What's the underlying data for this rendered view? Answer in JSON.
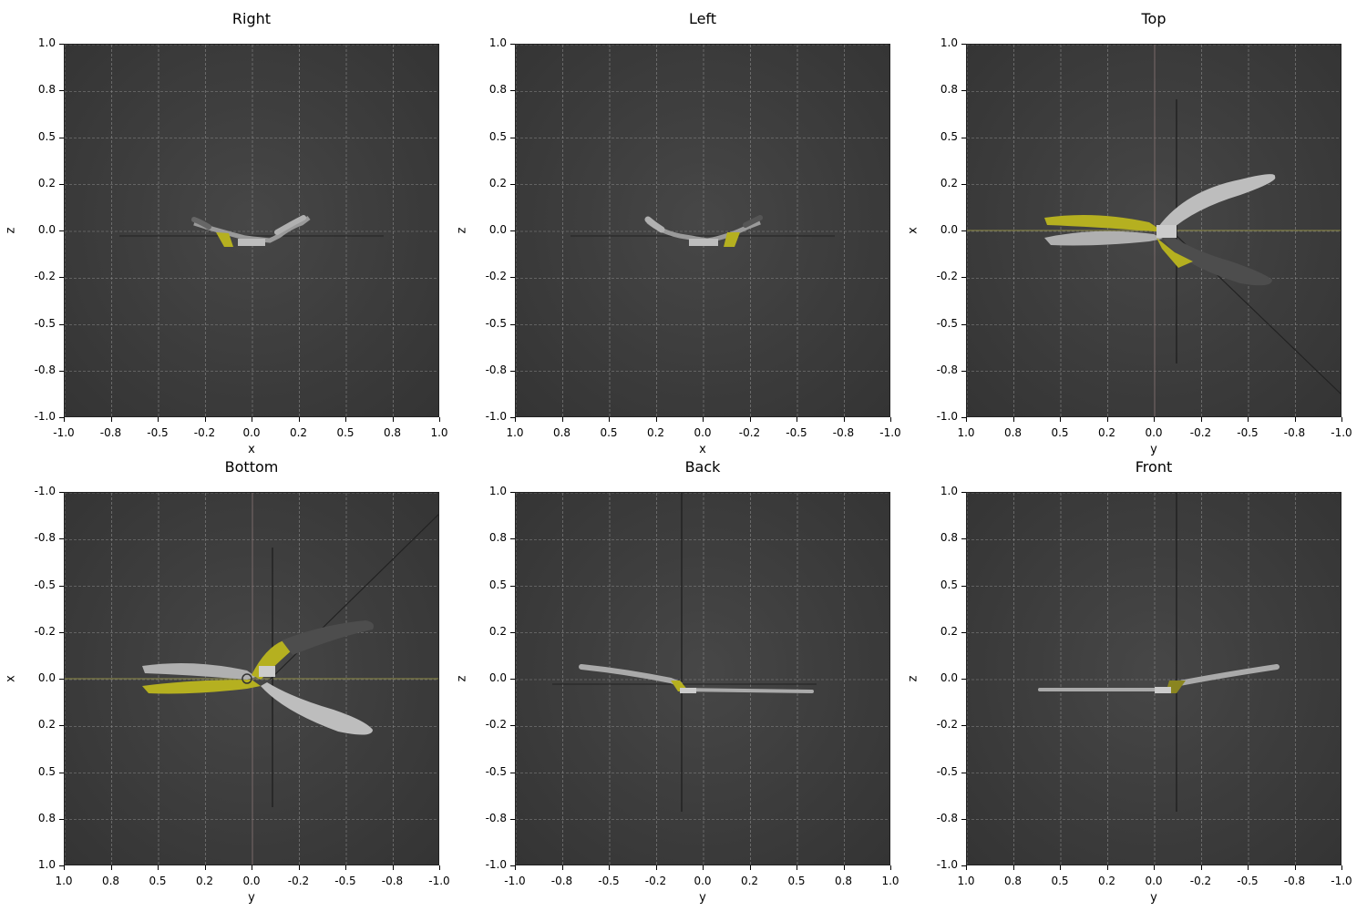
{
  "panels": [
    {
      "title": "Right",
      "xlabel": "x",
      "ylabel": "z",
      "xticks": [
        "-1.0",
        "-0.8",
        "-0.5",
        "-0.2",
        "0.0",
        "0.2",
        "0.5",
        "0.8",
        "1.0"
      ],
      "yticks": [
        "1.0",
        "0.8",
        "0.5",
        "0.2",
        "0.0",
        "-0.2",
        "-0.5",
        "-0.8",
        "-1.0"
      ]
    },
    {
      "title": "Left",
      "xlabel": "x",
      "ylabel": "z",
      "xticks": [
        "1.0",
        "0.8",
        "0.5",
        "0.2",
        "0.0",
        "-0.2",
        "-0.5",
        "-0.8",
        "-1.0"
      ],
      "yticks": [
        "1.0",
        "0.8",
        "0.5",
        "0.2",
        "0.0",
        "-0.2",
        "-0.5",
        "-0.8",
        "-1.0"
      ]
    },
    {
      "title": "Top",
      "xlabel": "y",
      "ylabel": "x",
      "xticks": [
        "1.0",
        "0.8",
        "0.5",
        "0.2",
        "0.0",
        "-0.2",
        "-0.5",
        "-0.8",
        "-1.0"
      ],
      "yticks": [
        "1.0",
        "0.8",
        "0.5",
        "0.2",
        "0.0",
        "-0.2",
        "-0.5",
        "-0.8",
        "-1.0"
      ]
    },
    {
      "title": "Bottom",
      "xlabel": "y",
      "ylabel": "x",
      "xticks": [
        "1.0",
        "0.8",
        "0.5",
        "0.2",
        "0.0",
        "-0.2",
        "-0.5",
        "-0.8",
        "-1.0"
      ],
      "yticks": [
        "-1.0",
        "-0.8",
        "-0.5",
        "-0.2",
        "0.0",
        "0.2",
        "0.5",
        "0.8",
        "1.0"
      ]
    },
    {
      "title": "Back",
      "xlabel": "y",
      "ylabel": "z",
      "xticks": [
        "-1.0",
        "-0.8",
        "-0.5",
        "-0.2",
        "0.0",
        "0.2",
        "0.5",
        "0.8",
        "1.0"
      ],
      "yticks": [
        "1.0",
        "0.8",
        "0.5",
        "0.2",
        "0.0",
        "-0.2",
        "-0.5",
        "-0.8",
        "-1.0"
      ]
    },
    {
      "title": "Front",
      "xlabel": "y",
      "ylabel": "z",
      "xticks": [
        "1.0",
        "0.8",
        "0.5",
        "0.2",
        "0.0",
        "-0.2",
        "-0.5",
        "-0.8",
        "-1.0"
      ],
      "yticks": [
        "1.0",
        "0.8",
        "0.5",
        "0.2",
        "0.0",
        "-0.2",
        "-0.5",
        "-0.8",
        "-1.0"
      ]
    }
  ],
  "colors": {
    "background": "#3a3a3a",
    "grid": "#8a8a8a",
    "handle": "#a8a8a8",
    "highlight": "#b5b020",
    "dark_handle": "#4a4a4a"
  }
}
